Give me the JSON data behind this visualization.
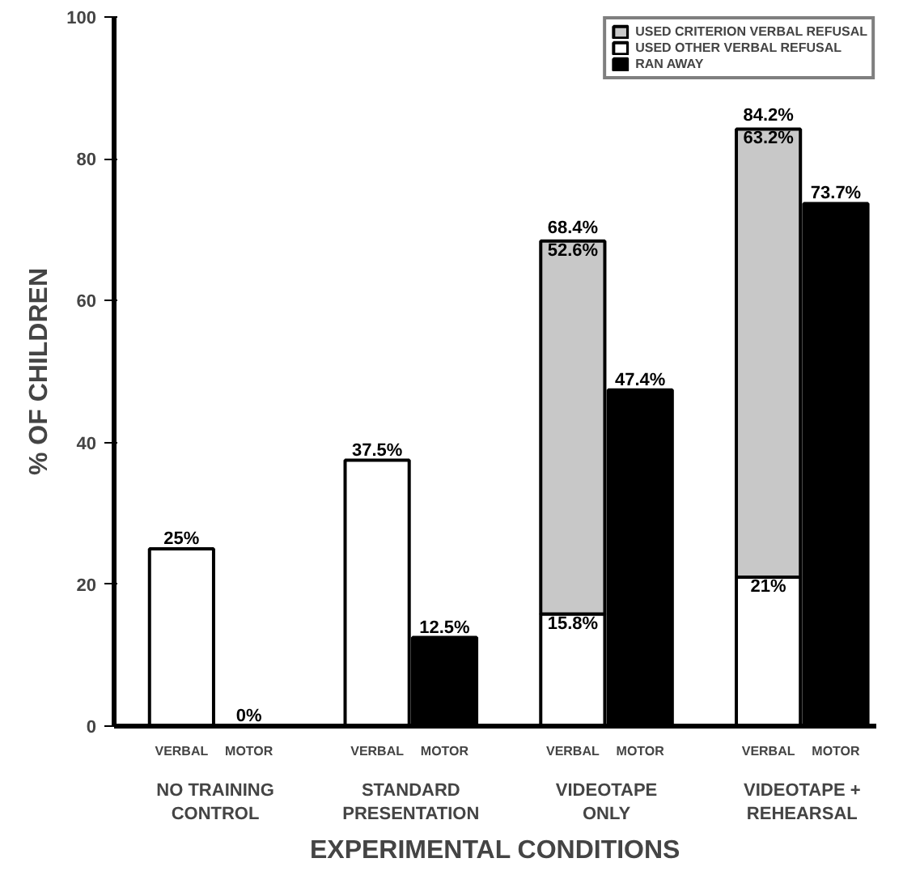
{
  "chart_data": {
    "type": "bar",
    "stacked": true,
    "categories": [
      "VERBAL",
      "MOTOR",
      "VERBAL",
      "MOTOR",
      "VERBAL",
      "MOTOR",
      "VERBAL",
      "MOTOR"
    ],
    "series": [
      {
        "name": "USED OTHER VERBAL REFUSAL",
        "color": "#ffffff",
        "values": [
          25,
          null,
          37.5,
          null,
          15.8,
          null,
          21,
          null
        ],
        "value_labels": [
          "25%",
          null,
          "37.5%",
          null,
          "15.8%",
          null,
          "21%",
          null
        ]
      },
      {
        "name": "USED CRITERION VERBAL REFUSAL",
        "color": "#c8c8c8",
        "values": [
          null,
          null,
          null,
          null,
          52.6,
          null,
          63.2,
          null
        ],
        "value_labels": [
          null,
          null,
          null,
          null,
          "52.6%",
          null,
          "63.2%",
          null
        ]
      },
      {
        "name": "RAN AWAY",
        "color": "#000000",
        "values": [
          null,
          0,
          null,
          12.5,
          null,
          47.4,
          null,
          73.7
        ],
        "value_labels": [
          null,
          "0%",
          null,
          "12.5%",
          null,
          "47.4%",
          null,
          "73.7%"
        ]
      }
    ],
    "totals": [
      null,
      null,
      null,
      null,
      "68.4%",
      null,
      "84.2%",
      null
    ],
    "annotations": [
      "NO TRAINING\nCONTROL",
      "STANDARD\nPRESENTATION",
      "VIDEOTAPE\nONLY",
      "VIDEOTAPE +\nREHEARSAL"
    ],
    "xlabel": "EXPERIMENTAL CONDITIONS",
    "ylabel": "% OF CHILDREN",
    "ylim": [
      0,
      100
    ],
    "yticks": [
      0,
      20,
      40,
      60,
      80,
      100
    ],
    "grid": false,
    "legend": "top right"
  }
}
